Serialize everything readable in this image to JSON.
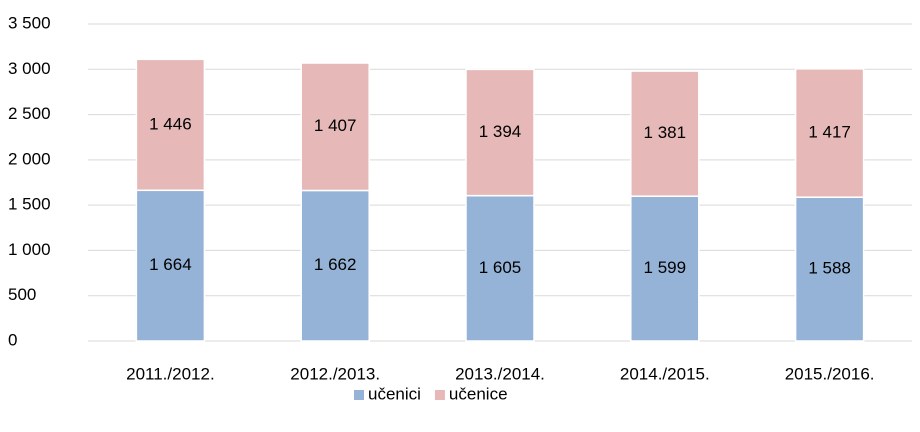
{
  "chart_data": {
    "type": "stacked_bar",
    "categories": [
      "2011./2012.",
      "2012./2013.",
      "2013./2014.",
      "2014./2015.",
      "2015./2016."
    ],
    "series": [
      {
        "name": "učenici",
        "color": "#95b3d7",
        "values": [
          1664,
          1662,
          1605,
          1599,
          1588
        ],
        "value_labels": [
          "1 664",
          "1 662",
          "1 605",
          "1 599",
          "1 588"
        ]
      },
      {
        "name": "učenice",
        "color": "#e6b9b8",
        "values": [
          1446,
          1407,
          1394,
          1381,
          1417
        ],
        "value_labels": [
          "1 446",
          "1 407",
          "1 394",
          "1 381",
          "1 417"
        ]
      }
    ],
    "ylim": [
      0,
      3500
    ],
    "yticks": [
      0,
      500,
      {
        "value": 1000,
        "label": "1 000"
      },
      {
        "value": 1500,
        "label": "1 500"
      },
      {
        "value": 2000,
        "label": "2 000"
      },
      {
        "value": 2500,
        "label": "2 500"
      },
      {
        "value": 3000,
        "label": "3 000"
      },
      {
        "value": 3500,
        "label": "3 500"
      }
    ],
    "grid": true,
    "legend": "bottom"
  }
}
